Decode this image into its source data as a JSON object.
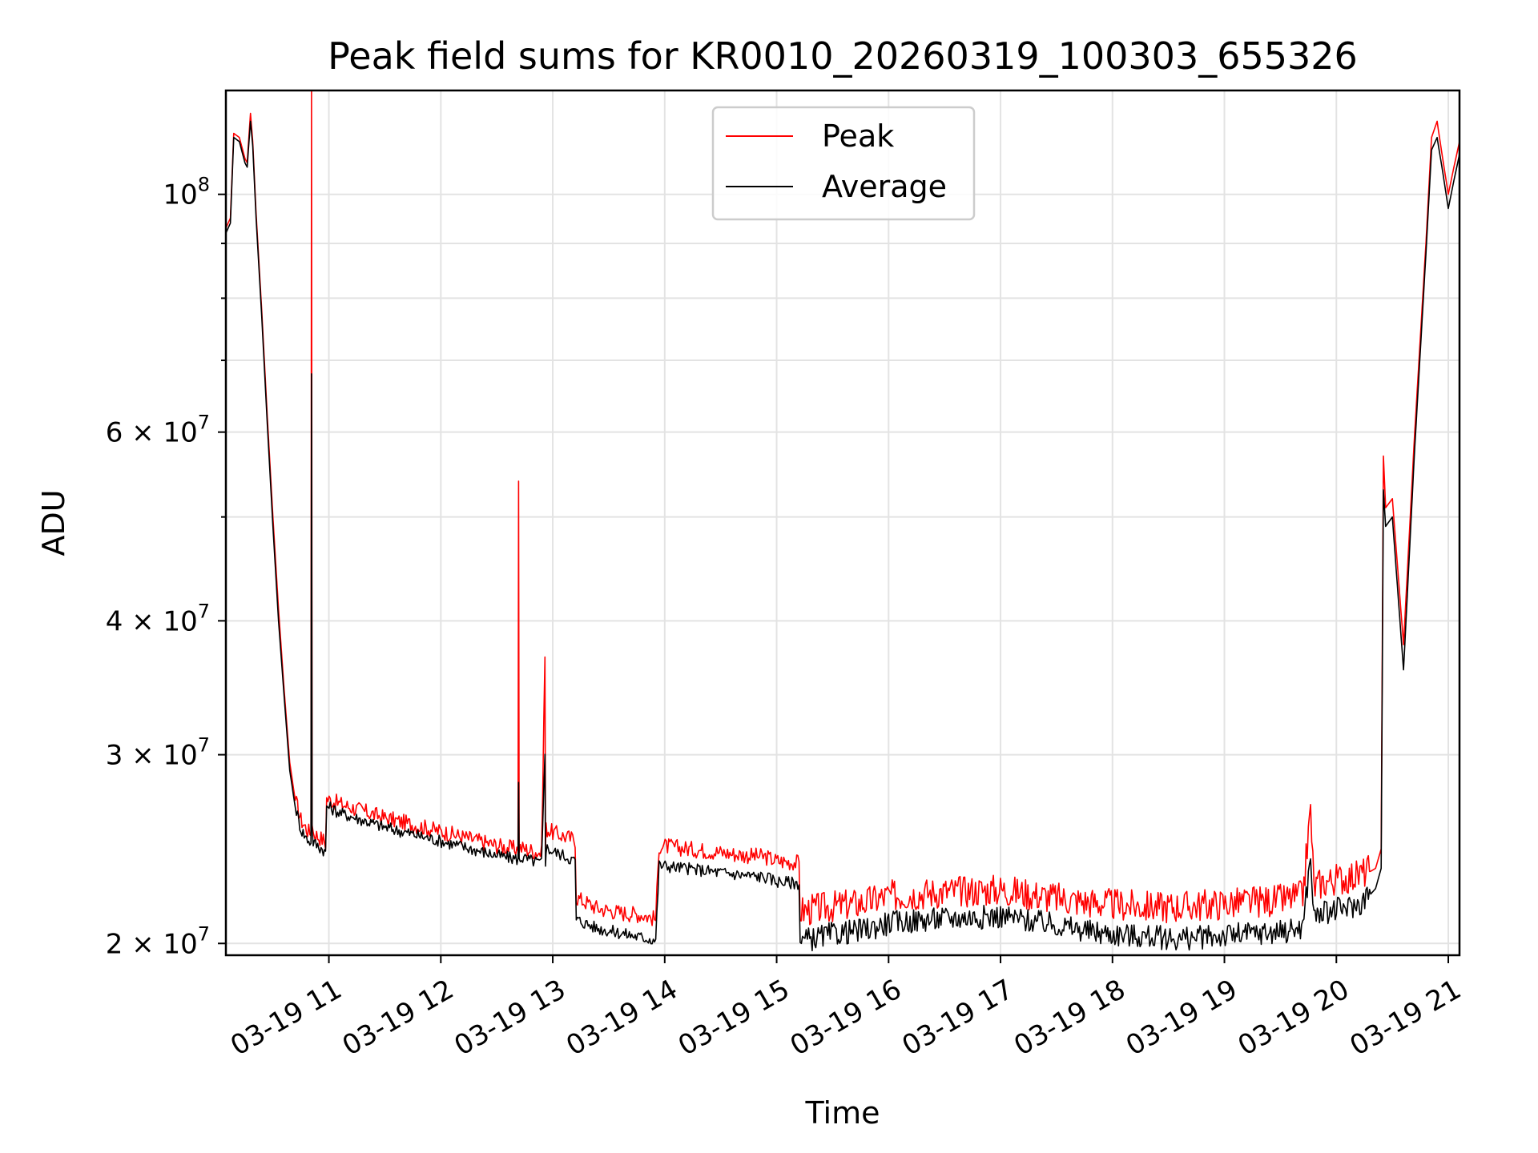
{
  "chart_data": {
    "type": "line",
    "title": "Peak field sums for KR0010_20260319_100303_655326",
    "xlabel": "Time",
    "ylabel": "ADU",
    "yscale": "log",
    "grid": true,
    "legend_position": "top-center",
    "xlim": [
      10.08,
      21.1
    ],
    "ylim": [
      19500000,
      125000000
    ],
    "x_ticks": [
      {
        "value": 11,
        "label": "03-19 11"
      },
      {
        "value": 12,
        "label": "03-19 12"
      },
      {
        "value": 13,
        "label": "03-19 13"
      },
      {
        "value": 14,
        "label": "03-19 14"
      },
      {
        "value": 15,
        "label": "03-19 15"
      },
      {
        "value": 16,
        "label": "03-19 16"
      },
      {
        "value": 17,
        "label": "03-19 17"
      },
      {
        "value": 18,
        "label": "03-19 18"
      },
      {
        "value": 19,
        "label": "03-19 19"
      },
      {
        "value": 20,
        "label": "03-19 20"
      },
      {
        "value": 21,
        "label": "03-19 21"
      }
    ],
    "y_ticks_major": [
      {
        "value": 20000000,
        "mantissa": "2",
        "exponent": "7"
      },
      {
        "value": 30000000,
        "mantissa": "3",
        "exponent": "7"
      },
      {
        "value": 40000000,
        "mantissa": "4",
        "exponent": "7"
      },
      {
        "value": 60000000,
        "mantissa": "6",
        "exponent": "7"
      },
      {
        "value": 100000000,
        "mantissa": "",
        "exponent": "8"
      }
    ],
    "y_ticks_minor": [
      50000000,
      70000000,
      80000000,
      90000000
    ],
    "series": [
      {
        "name": "Peak",
        "color": "#ff0000",
        "x": [
          10.08,
          10.12,
          10.15,
          10.2,
          10.25,
          10.27,
          10.3,
          10.32,
          10.35,
          10.4,
          10.45,
          10.5,
          10.55,
          10.6,
          10.65,
          10.7,
          10.75,
          10.8,
          10.84,
          10.845,
          10.85,
          10.86,
          10.9,
          10.95,
          10.97,
          10.98,
          11.1,
          11.3,
          11.5,
          11.7,
          11.9,
          12.1,
          12.3,
          12.5,
          12.69,
          12.695,
          12.7,
          12.9,
          12.93,
          12.935,
          12.94,
          13.0,
          13.1,
          13.2,
          13.21,
          13.4,
          13.6,
          13.8,
          13.92,
          13.95,
          14.1,
          14.4,
          14.7,
          14.9,
          15.0,
          15.2,
          15.21,
          15.5,
          15.8,
          16.0,
          16.5,
          17.0,
          17.5,
          17.8,
          18.0,
          18.3,
          18.6,
          18.9,
          19.2,
          19.5,
          19.7,
          19.77,
          19.8,
          19.82,
          19.85,
          20.0,
          20.2,
          20.35,
          20.4,
          20.42,
          20.44,
          20.5,
          20.6,
          20.7,
          20.8,
          20.85,
          20.9,
          20.95,
          21.0,
          21.05,
          21.1
        ],
        "values": [
          93000000,
          95000000,
          114000000,
          113000000,
          108000000,
          107000000,
          119000000,
          112000000,
          96000000,
          78000000,
          62000000,
          50000000,
          41000000,
          34500000,
          29500000,
          27200000,
          26000000,
          25500000,
          25200000,
          125000000,
          26000000,
          25300000,
          25100000,
          24900000,
          24700000,
          27200000,
          26900000,
          26500000,
          26100000,
          25800000,
          25500000,
          25200000,
          24900000,
          24600000,
          24400000,
          54000000,
          24500000,
          24200000,
          37000000,
          24500000,
          25500000,
          25300000,
          25100000,
          24900000,
          22000000,
          21500000,
          21300000,
          21200000,
          21000000,
          24600000,
          24500000,
          24300000,
          24100000,
          24000000,
          23800000,
          23700000,
          21300000,
          21500000,
          21700000,
          22000000,
          22200000,
          22300000,
          21900000,
          21700000,
          21600000,
          21500000,
          21500000,
          21600000,
          21700000,
          21800000,
          22000000,
          26500000,
          22400000,
          22500000,
          22600000,
          22800000,
          23000000,
          23500000,
          24500000,
          57000000,
          51000000,
          52000000,
          38000000,
          60000000,
          90000000,
          113000000,
          117000000,
          108000000,
          100000000,
          106000000,
          112000000
        ]
      },
      {
        "name": "Average",
        "color": "#000000",
        "x": [
          10.08,
          10.12,
          10.15,
          10.2,
          10.25,
          10.27,
          10.3,
          10.32,
          10.35,
          10.4,
          10.45,
          10.5,
          10.55,
          10.6,
          10.65,
          10.7,
          10.75,
          10.8,
          10.84,
          10.845,
          10.85,
          10.86,
          10.9,
          10.95,
          10.97,
          10.98,
          11.1,
          11.3,
          11.5,
          11.7,
          11.9,
          12.1,
          12.3,
          12.5,
          12.69,
          12.695,
          12.7,
          12.9,
          12.93,
          12.935,
          12.94,
          13.0,
          13.1,
          13.2,
          13.21,
          13.4,
          13.6,
          13.8,
          13.92,
          13.95,
          14.1,
          14.4,
          14.7,
          14.9,
          15.0,
          15.2,
          15.21,
          15.5,
          15.8,
          16.0,
          16.5,
          17.0,
          17.5,
          17.8,
          18.0,
          18.3,
          18.6,
          18.9,
          19.2,
          19.5,
          19.7,
          19.77,
          19.8,
          19.82,
          19.85,
          20.0,
          20.2,
          20.35,
          20.4,
          20.42,
          20.44,
          20.5,
          20.6,
          20.7,
          20.8,
          20.85,
          20.9,
          20.95,
          21.0,
          21.05,
          21.1
        ],
        "values": [
          92000000,
          94000000,
          113000000,
          112000000,
          107000000,
          106000000,
          117000000,
          111000000,
          95000000,
          77000000,
          61000000,
          49000000,
          40000000,
          34000000,
          29000000,
          26800000,
          25500000,
          25000000,
          24800000,
          68000000,
          25500000,
          24800000,
          24600000,
          24400000,
          24200000,
          26800000,
          26400000,
          26000000,
          25600000,
          25300000,
          25000000,
          24700000,
          24400000,
          24100000,
          23900000,
          28000000,
          24000000,
          23700000,
          30000000,
          23800000,
          24500000,
          24300000,
          24100000,
          23800000,
          21000000,
          20600000,
          20400000,
          20200000,
          20100000,
          23600000,
          23500000,
          23300000,
          23100000,
          23000000,
          22800000,
          22700000,
          20000000,
          20300000,
          20500000,
          20800000,
          21000000,
          21100000,
          20700000,
          20400000,
          20300000,
          20200000,
          20100000,
          20200000,
          20300000,
          20400000,
          20600000,
          24000000,
          21000000,
          21100000,
          21200000,
          21400000,
          21600000,
          22500000,
          23500000,
          53000000,
          49000000,
          50000000,
          36000000,
          58000000,
          88000000,
          110000000,
          113000000,
          105000000,
          97000000,
          103000000,
          109000000
        ]
      }
    ]
  }
}
